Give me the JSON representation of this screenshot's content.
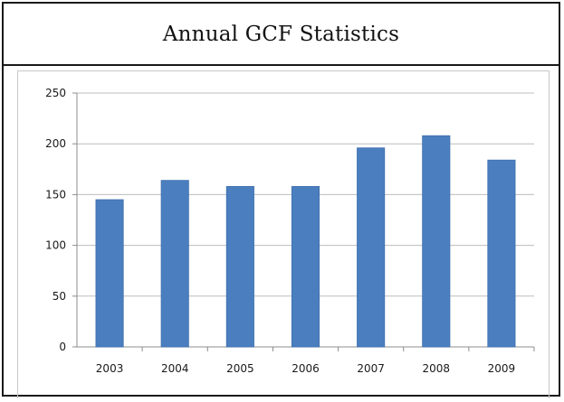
{
  "header": {
    "title": "Annual GCF Statistics"
  },
  "colors": {
    "bar": "#4a7ebf",
    "bar_edge": "#3f6fae",
    "grid": "#bdbdbd",
    "axis": "#8c8c8c",
    "text": "#1a1a1a"
  },
  "chart_data": {
    "type": "bar",
    "title": "",
    "xlabel": "",
    "ylabel": "",
    "categories": [
      "2003",
      "2004",
      "2005",
      "2006",
      "2007",
      "2008",
      "2009"
    ],
    "values": [
      145,
      164,
      158,
      158,
      196,
      208,
      184
    ],
    "ylim": [
      0,
      250
    ],
    "yticks": [
      0,
      50,
      100,
      150,
      200,
      250
    ],
    "grid": true,
    "legend": "none"
  }
}
